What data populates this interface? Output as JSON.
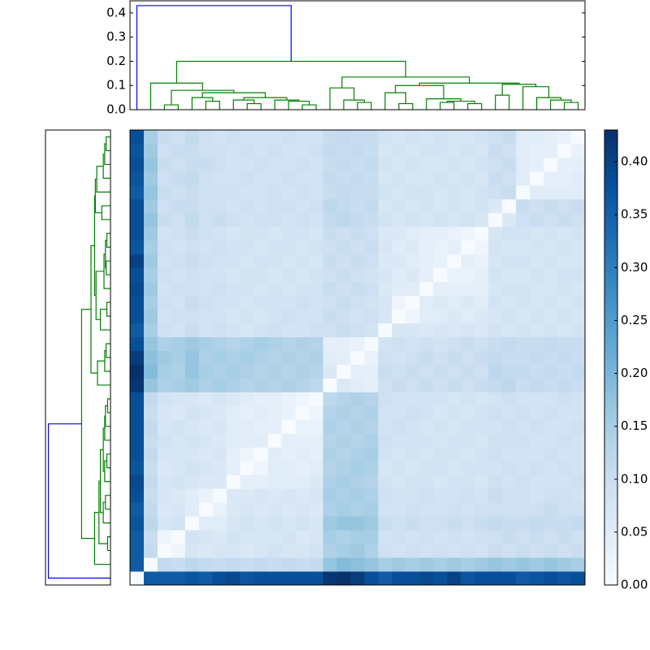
{
  "chart_data": {
    "type": "clustermap",
    "cmap": "Blues",
    "clim": [
      0,
      0.43
    ],
    "matrix": [
      [
        0
      ],
      [
        0.36,
        0
      ],
      [
        0.36,
        0.11,
        0
      ],
      [
        0.36,
        0.1,
        0.02,
        0
      ],
      [
        0.37,
        0.12,
        0.07,
        0.08,
        0
      ],
      [
        0.36,
        0.11,
        0.06,
        0.07,
        0.05,
        0
      ],
      [
        0.38,
        0.1,
        0.07,
        0.06,
        0.05,
        0.03,
        0
      ],
      [
        0.39,
        0.11,
        0.07,
        0.08,
        0.07,
        0.06,
        0.06,
        0
      ],
      [
        0.37,
        0.1,
        0.06,
        0.07,
        0.08,
        0.07,
        0.06,
        0.04,
        0
      ],
      [
        0.38,
        0.11,
        0.07,
        0.07,
        0.07,
        0.06,
        0.07,
        0.04,
        0.02,
        0
      ],
      [
        0.38,
        0.1,
        0.08,
        0.07,
        0.08,
        0.07,
        0.06,
        0.05,
        0.05,
        0.05,
        0
      ],
      [
        0.38,
        0.11,
        0.07,
        0.08,
        0.07,
        0.06,
        0.07,
        0.05,
        0.05,
        0.04,
        0.04,
        0
      ],
      [
        0.38,
        0.1,
        0.07,
        0.06,
        0.08,
        0.07,
        0.06,
        0.05,
        0.04,
        0.05,
        0.04,
        0.03,
        0
      ],
      [
        0.38,
        0.11,
        0.08,
        0.07,
        0.07,
        0.06,
        0.07,
        0.06,
        0.05,
        0.04,
        0.04,
        0.03,
        0.02,
        0
      ],
      [
        0.42,
        0.17,
        0.14,
        0.15,
        0.16,
        0.14,
        0.15,
        0.14,
        0.13,
        0.14,
        0.13,
        0.14,
        0.13,
        0.12,
        0
      ],
      [
        0.43,
        0.19,
        0.15,
        0.14,
        0.17,
        0.15,
        0.14,
        0.15,
        0.14,
        0.13,
        0.14,
        0.13,
        0.14,
        0.13,
        0.06,
        0
      ],
      [
        0.41,
        0.18,
        0.16,
        0.15,
        0.17,
        0.14,
        0.15,
        0.14,
        0.15,
        0.14,
        0.13,
        0.14,
        0.13,
        0.14,
        0.05,
        0.04,
        0
      ],
      [
        0.38,
        0.17,
        0.14,
        0.15,
        0.16,
        0.15,
        0.14,
        0.13,
        0.14,
        0.15,
        0.14,
        0.13,
        0.14,
        0.13,
        0.04,
        0.04,
        0.03,
        0
      ],
      [
        0.36,
        0.15,
        0.09,
        0.08,
        0.1,
        0.08,
        0.09,
        0.08,
        0.07,
        0.08,
        0.09,
        0.08,
        0.08,
        0.09,
        0.09,
        0.1,
        0.09,
        0.08,
        0
      ],
      [
        0.38,
        0.16,
        0.08,
        0.09,
        0.09,
        0.08,
        0.08,
        0.07,
        0.08,
        0.07,
        0.08,
        0.09,
        0.08,
        0.08,
        0.1,
        0.09,
        0.08,
        0.09,
        0.07,
        0
      ],
      [
        0.38,
        0.15,
        0.09,
        0.08,
        0.1,
        0.09,
        0.08,
        0.08,
        0.07,
        0.08,
        0.08,
        0.08,
        0.09,
        0.08,
        0.09,
        0.1,
        0.09,
        0.08,
        0.07,
        0.02,
        0
      ],
      [
        0.39,
        0.16,
        0.08,
        0.09,
        0.09,
        0.08,
        0.09,
        0.08,
        0.08,
        0.07,
        0.08,
        0.07,
        0.08,
        0.08,
        0.1,
        0.09,
        0.1,
        0.09,
        0.06,
        0.05,
        0.05,
        0
      ],
      [
        0.38,
        0.15,
        0.09,
        0.08,
        0.09,
        0.08,
        0.08,
        0.07,
        0.08,
        0.08,
        0.07,
        0.08,
        0.07,
        0.08,
        0.09,
        0.1,
        0.09,
        0.08,
        0.07,
        0.05,
        0.06,
        0.04,
        0
      ],
      [
        0.4,
        0.16,
        0.08,
        0.09,
        0.1,
        0.09,
        0.08,
        0.08,
        0.07,
        0.08,
        0.08,
        0.07,
        0.08,
        0.07,
        0.1,
        0.09,
        0.1,
        0.09,
        0.06,
        0.06,
        0.05,
        0.04,
        0.03,
        0
      ],
      [
        0.37,
        0.15,
        0.09,
        0.08,
        0.09,
        0.08,
        0.09,
        0.08,
        0.08,
        0.07,
        0.08,
        0.08,
        0.07,
        0.08,
        0.09,
        0.1,
        0.09,
        0.1,
        0.07,
        0.05,
        0.06,
        0.04,
        0.03,
        0.04,
        0
      ],
      [
        0.38,
        0.16,
        0.08,
        0.09,
        0.1,
        0.09,
        0.08,
        0.07,
        0.08,
        0.08,
        0.07,
        0.08,
        0.08,
        0.07,
        0.1,
        0.09,
        0.1,
        0.09,
        0.06,
        0.06,
        0.05,
        0.04,
        0.04,
        0.03,
        0.02,
        0
      ],
      [
        0.38,
        0.17,
        0.1,
        0.09,
        0.11,
        0.09,
        0.1,
        0.09,
        0.08,
        0.09,
        0.09,
        0.08,
        0.09,
        0.08,
        0.11,
        0.12,
        0.11,
        0.1,
        0.08,
        0.07,
        0.08,
        0.07,
        0.08,
        0.07,
        0.08,
        0.07,
        0
      ],
      [
        0.38,
        0.16,
        0.09,
        0.1,
        0.1,
        0.09,
        0.09,
        0.08,
        0.09,
        0.08,
        0.09,
        0.09,
        0.08,
        0.09,
        0.12,
        0.11,
        0.1,
        0.11,
        0.07,
        0.08,
        0.07,
        0.08,
        0.07,
        0.08,
        0.07,
        0.08,
        0.06,
        0
      ],
      [
        0.36,
        0.17,
        0.1,
        0.09,
        0.1,
        0.09,
        0.09,
        0.09,
        0.08,
        0.08,
        0.09,
        0.08,
        0.09,
        0.08,
        0.1,
        0.11,
        0.1,
        0.1,
        0.08,
        0.07,
        0.08,
        0.08,
        0.07,
        0.08,
        0.07,
        0.08,
        0.09,
        0.1,
        0
      ],
      [
        0.37,
        0.16,
        0.09,
        0.1,
        0.11,
        0.09,
        0.08,
        0.08,
        0.09,
        0.08,
        0.08,
        0.09,
        0.08,
        0.08,
        0.11,
        0.1,
        0.11,
        0.1,
        0.07,
        0.08,
        0.07,
        0.07,
        0.08,
        0.07,
        0.08,
        0.07,
        0.1,
        0.09,
        0.05,
        0
      ],
      [
        0.38,
        0.17,
        0.1,
        0.09,
        0.1,
        0.1,
        0.09,
        0.08,
        0.08,
        0.09,
        0.08,
        0.08,
        0.09,
        0.08,
        0.1,
        0.11,
        0.1,
        0.11,
        0.08,
        0.07,
        0.08,
        0.07,
        0.07,
        0.08,
        0.07,
        0.08,
        0.09,
        0.1,
        0.05,
        0.04,
        0
      ],
      [
        0.37,
        0.16,
        0.09,
        0.1,
        0.1,
        0.09,
        0.09,
        0.08,
        0.09,
        0.08,
        0.09,
        0.08,
        0.08,
        0.09,
        0.11,
        0.1,
        0.11,
        0.1,
        0.07,
        0.08,
        0.07,
        0.08,
        0.08,
        0.07,
        0.08,
        0.07,
        0.1,
        0.09,
        0.05,
        0.04,
        0.04,
        0
      ],
      [
        0.38,
        0.15,
        0.1,
        0.09,
        0.11,
        0.09,
        0.08,
        0.09,
        0.08,
        0.08,
        0.08,
        0.09,
        0.08,
        0.08,
        0.1,
        0.11,
        0.1,
        0.1,
        0.08,
        0.07,
        0.08,
        0.07,
        0.08,
        0.07,
        0.07,
        0.08,
        0.09,
        0.1,
        0.05,
        0.05,
        0.04,
        0.03,
        0
      ]
    ],
    "linkage": [
      [
        2,
        3,
        0.02
      ],
      [
        5,
        6,
        0.035
      ],
      [
        4,
        34,
        0.05
      ],
      [
        8,
        9,
        0.025
      ],
      [
        7,
        36,
        0.04
      ],
      [
        12,
        13,
        0.02
      ],
      [
        11,
        38,
        0.035
      ],
      [
        10,
        39,
        0.04
      ],
      [
        37,
        40,
        0.05
      ],
      [
        35,
        41,
        0.07
      ],
      [
        33,
        42,
        0.08
      ],
      [
        1,
        43,
        0.11
      ],
      [
        16,
        17,
        0.03
      ],
      [
        15,
        45,
        0.04
      ],
      [
        14,
        46,
        0.09
      ],
      [
        19,
        20,
        0.025
      ],
      [
        18,
        48,
        0.07
      ],
      [
        22,
        23,
        0.03
      ],
      [
        24,
        25,
        0.025
      ],
      [
        50,
        51,
        0.035
      ],
      [
        21,
        52,
        0.045
      ],
      [
        49,
        53,
        0.1
      ],
      [
        31,
        32,
        0.03
      ],
      [
        30,
        55,
        0.04
      ],
      [
        29,
        56,
        0.05
      ],
      [
        28,
        57,
        0.095
      ],
      [
        26,
        27,
        0.06
      ],
      [
        59,
        58,
        0.105
      ],
      [
        54,
        60,
        0.11
      ],
      [
        47,
        61,
        0.135
      ],
      [
        44,
        62,
        0.2
      ],
      [
        0,
        63,
        0.43
      ]
    ],
    "link_colors": [
      "#008000",
      "#008000",
      "#008000",
      "#008000",
      "#008000",
      "#008000",
      "#008000",
      "#008000",
      "#008000",
      "#008000",
      "#008000",
      "#008000",
      "#008000",
      "#008000",
      "#008000",
      "#008000",
      "#008000",
      "#008000",
      "#008000",
      "#008000",
      "#008000",
      "#008000",
      "#008000",
      "#008000",
      "#008000",
      "#008000",
      "#008000",
      "#008000",
      "#008000",
      "#008000",
      "#008000",
      "#0000ff"
    ],
    "dendrogram_ylim": [
      0,
      0.45
    ],
    "dendrogram_yticks": [
      {
        "value": 0,
        "label": "0.0"
      },
      {
        "value": 0.1,
        "label": "0.1"
      },
      {
        "value": 0.2,
        "label": "0.2"
      },
      {
        "value": 0.3,
        "label": "0.3"
      },
      {
        "value": 0.4,
        "label": "0.4"
      }
    ],
    "colorbar_ticks": [
      {
        "value": 0,
        "label": "0.00"
      },
      {
        "value": 0.05,
        "label": "0.05"
      },
      {
        "value": 0.1,
        "label": "0.10"
      },
      {
        "value": 0.15,
        "label": "0.15"
      },
      {
        "value": 0.2,
        "label": "0.20"
      },
      {
        "value": 0.25,
        "label": "0.25"
      },
      {
        "value": 0.3,
        "label": "0.30"
      },
      {
        "value": 0.35,
        "label": "0.35"
      },
      {
        "value": 0.4,
        "label": "0.40"
      }
    ]
  }
}
